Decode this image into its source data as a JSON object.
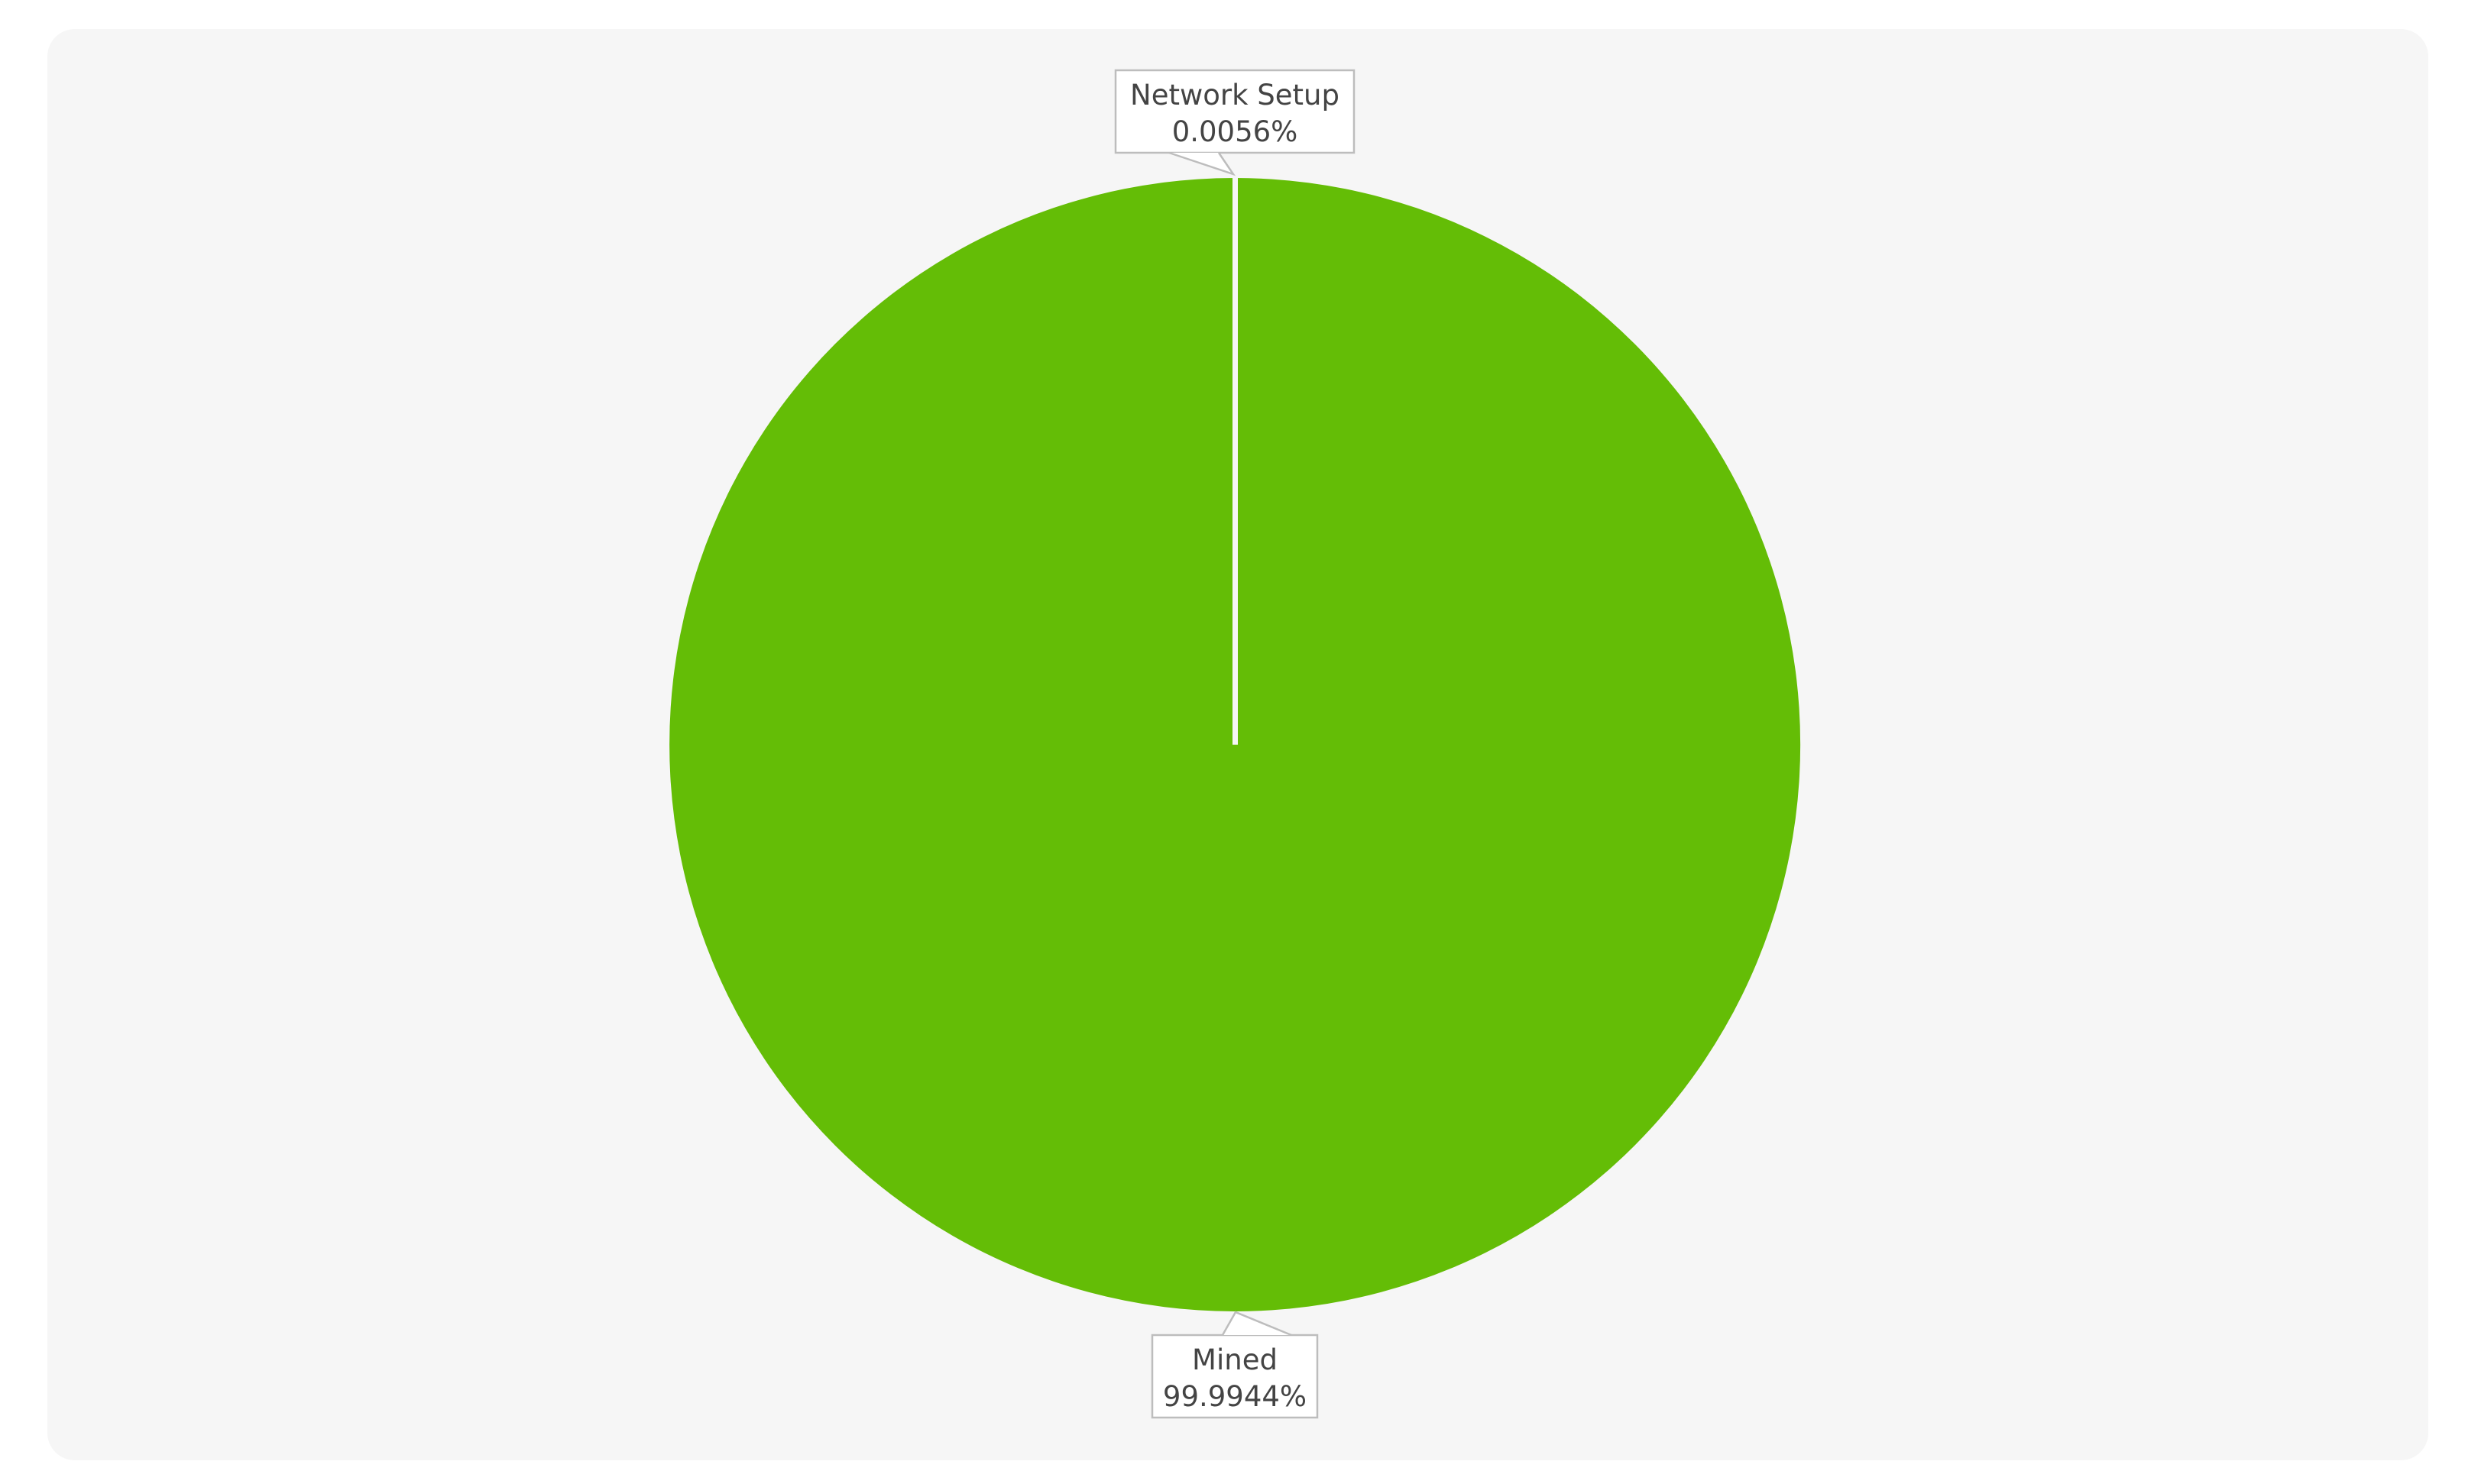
{
  "chart_data": {
    "type": "pie",
    "title": "",
    "start_angle_deg": -90,
    "direction": "clockwise",
    "slices": [
      {
        "name": "Network Setup",
        "value": 0.0056,
        "label": "0.0056%",
        "color": "#f6f6f6"
      },
      {
        "name": "Mined",
        "value": 99.9944,
        "label": "99.9944%",
        "color": "#64bd06"
      }
    ],
    "legend": "none",
    "label_style": "callout-boxes"
  }
}
